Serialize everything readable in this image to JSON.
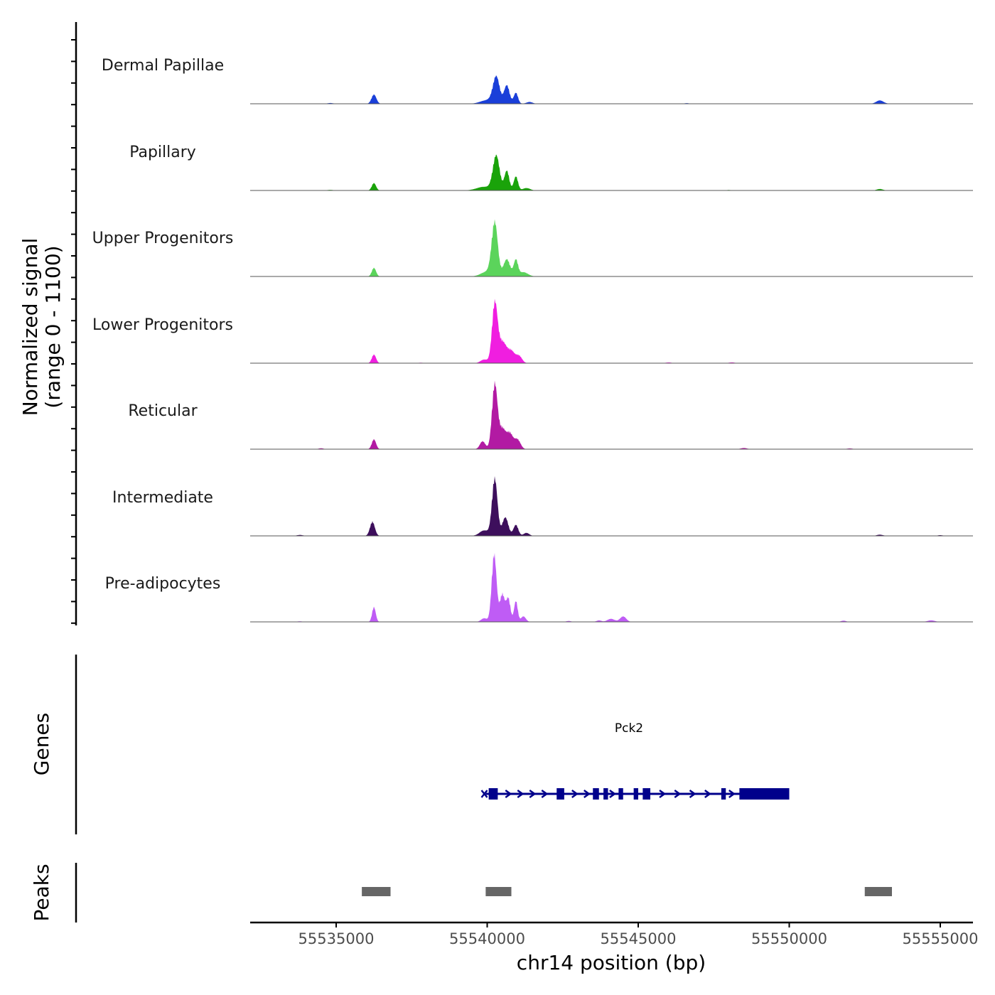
{
  "chart_data": {
    "type": "area",
    "title": "",
    "xlabel": "chr14 position (bp)",
    "ylabel_line1": "Normalized signal",
    "ylabel_line2": "(range 0 - 1100)",
    "ylim": [
      0,
      1100
    ],
    "xlim": [
      55532800,
      55556800
    ],
    "xticks": [
      {
        "value": 55535000,
        "label": "55535000"
      },
      {
        "value": 55540000,
        "label": "55540000"
      },
      {
        "value": 55545000,
        "label": "55545000"
      },
      {
        "value": 55550000,
        "label": "55550000"
      },
      {
        "value": 55555000,
        "label": "55555000"
      }
    ],
    "tracks": [
      {
        "name": "Dermal Papillae",
        "color": "#1a3fd9",
        "peaks": [
          [
            55536250,
            150,
            80
          ],
          [
            55540000,
            60,
            220
          ],
          [
            55540300,
            430,
            110
          ],
          [
            55540650,
            300,
            90
          ],
          [
            55540950,
            180,
            70
          ],
          [
            55541400,
            30,
            100
          ],
          [
            55553000,
            55,
            120
          ],
          [
            55534800,
            12,
            100
          ],
          [
            55546600,
            10,
            80
          ]
        ]
      },
      {
        "name": "Papillary",
        "color": "#1aa30a",
        "peaks": [
          [
            55536250,
            120,
            70
          ],
          [
            55539900,
            60,
            250
          ],
          [
            55540300,
            560,
            110
          ],
          [
            55540650,
            320,
            80
          ],
          [
            55540950,
            230,
            70
          ],
          [
            55541300,
            40,
            120
          ],
          [
            55553000,
            25,
            100
          ],
          [
            55534800,
            10,
            100
          ],
          [
            55548000,
            8,
            80
          ]
        ]
      },
      {
        "name": "Upper Progenitors",
        "color": "#5bd45b",
        "peaks": [
          [
            55536250,
            140,
            70
          ],
          [
            55540000,
            80,
            200
          ],
          [
            55540250,
            860,
            100
          ],
          [
            55540650,
            280,
            110
          ],
          [
            55540950,
            260,
            70
          ],
          [
            55541200,
            70,
            150
          ]
        ]
      },
      {
        "name": "Lower Progenitors",
        "color": "#f01ee0",
        "peaks": [
          [
            55536250,
            140,
            70
          ],
          [
            55539900,
            60,
            120
          ],
          [
            55540250,
            940,
            90
          ],
          [
            55540500,
            350,
            140
          ],
          [
            55540800,
            180,
            110
          ],
          [
            55541050,
            120,
            100
          ],
          [
            55546000,
            12,
            100
          ],
          [
            55548100,
            12,
            100
          ],
          [
            55537800,
            8,
            100
          ]
        ]
      },
      {
        "name": "Reticular",
        "color": "#b21aa3",
        "peaks": [
          [
            55536250,
            160,
            70
          ],
          [
            55539850,
            130,
            90
          ],
          [
            55540250,
            1050,
            90
          ],
          [
            55540500,
            330,
            110
          ],
          [
            55540750,
            250,
            100
          ],
          [
            55541000,
            160,
            100
          ],
          [
            55534500,
            15,
            80
          ],
          [
            55548500,
            20,
            100
          ],
          [
            55552000,
            12,
            100
          ]
        ]
      },
      {
        "name": "Intermediate",
        "color": "#3d0f5c",
        "peaks": [
          [
            55536200,
            230,
            80
          ],
          [
            55539900,
            90,
            150
          ],
          [
            55540250,
            930,
            90
          ],
          [
            55540600,
            300,
            100
          ],
          [
            55540950,
            180,
            80
          ],
          [
            55541300,
            50,
            90
          ],
          [
            55553000,
            20,
            100
          ],
          [
            55533800,
            15,
            100
          ],
          [
            55555000,
            12,
            80
          ]
        ]
      },
      {
        "name": "Pre-adipocytes",
        "color": "#bf5cf5",
        "peaks": [
          [
            55536250,
            240,
            60
          ],
          [
            55539900,
            60,
            100
          ],
          [
            55540230,
            1100,
            80
          ],
          [
            55540500,
            450,
            80
          ],
          [
            55540700,
            380,
            70
          ],
          [
            55540950,
            340,
            60
          ],
          [
            55541200,
            90,
            80
          ],
          [
            55544100,
            50,
            120
          ],
          [
            55544500,
            90,
            100
          ],
          [
            55543700,
            25,
            80
          ],
          [
            55542700,
            15,
            80
          ],
          [
            55551800,
            20,
            80
          ],
          [
            55554700,
            25,
            120
          ],
          [
            55533800,
            10,
            80
          ]
        ]
      }
    ],
    "genes": [
      {
        "name": "Pck2",
        "start": 55540000,
        "end": 55550000,
        "strand": "+",
        "color": "#00008b",
        "exons": [
          [
            55540050,
            55540350
          ],
          [
            55542300,
            55542550
          ],
          [
            55543500,
            55543700
          ],
          [
            55543850,
            55544000
          ],
          [
            55544350,
            55544500
          ],
          [
            55544850,
            55545000
          ],
          [
            55545150,
            55545400
          ],
          [
            55547750,
            55547900
          ],
          [
            55548350,
            55550000
          ]
        ],
        "arrows": [
          55540700,
          55541100,
          55541500,
          55541900,
          55542900,
          55543300,
          55544150,
          55545800,
          55546300,
          55546800,
          55547300,
          55548100
        ]
      }
    ],
    "peaks_track": {
      "color": "#666666",
      "regions": [
        [
          55535850,
          55536800
        ],
        [
          55539950,
          55540800
        ],
        [
          55552500,
          55553400
        ]
      ]
    },
    "panel_labels": {
      "genes": "Genes",
      "peaks": "Peaks"
    }
  }
}
